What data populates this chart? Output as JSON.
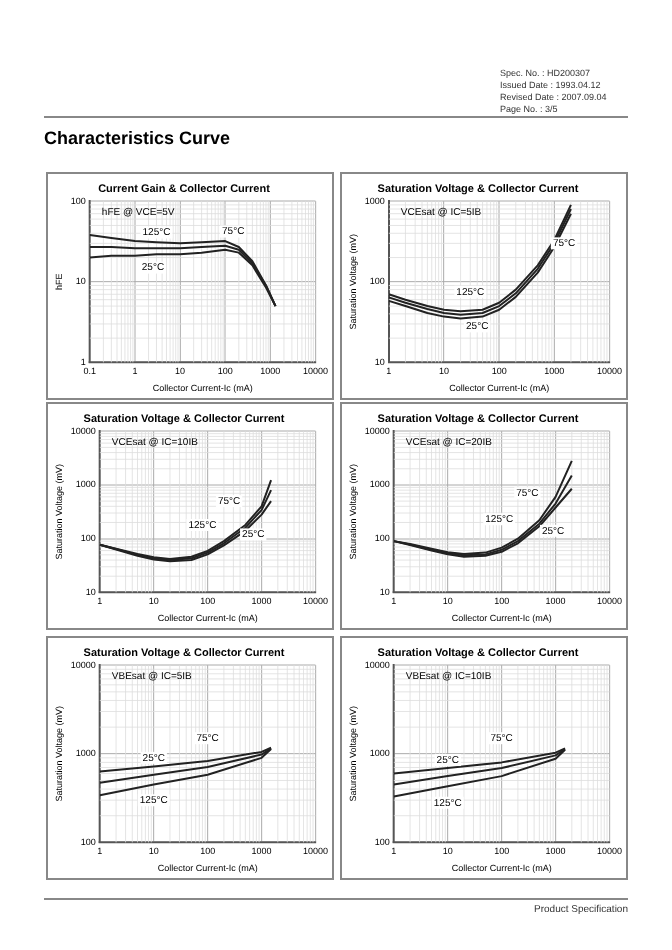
{
  "chart_data": [
    {
      "type": "line",
      "title": "Current Gain & Collector Current",
      "xlabel": "Collector Current-Ic (mA)",
      "ylabel": "hFE",
      "log": "xy",
      "grid": true,
      "xlim": [
        0.1,
        10000
      ],
      "xticks": [
        0.1,
        1,
        10,
        100,
        1000,
        10000
      ],
      "ylim": [
        1,
        100
      ],
      "yticks": [
        1,
        10,
        100
      ],
      "annotations": [
        "hFE @ VCE=5V",
        "Characteristics Curve",
        "Spec. No. : HD200307",
        "Issued Date : 1993.04.12",
        "Revised Date : 2007.09.04",
        "Page No. : 3/5",
        {
          "text": "125°C",
          "x": 3,
          "y": 41
        },
        {
          "text": "75°C",
          "x": 150,
          "y": 42
        },
        {
          "text": "25°C",
          "x": 2.5,
          "y": 15
        }
      ],
      "series": [
        {
          "color": "#222222",
          "x": [
            0.1,
            0.3,
            1,
            3,
            10,
            30,
            100,
            200,
            400,
            800,
            1300
          ],
          "values": [
            38,
            35,
            32,
            31,
            30,
            31,
            32,
            27,
            18,
            9,
            5
          ]
        },
        {
          "color": "#222222",
          "x": [
            0.1,
            0.3,
            1,
            3,
            10,
            30,
            100,
            200,
            400,
            800,
            1300
          ],
          "values": [
            27,
            27,
            26,
            26,
            26,
            27,
            28,
            25,
            17,
            9,
            5
          ]
        },
        {
          "color": "#222222",
          "x": [
            0.1,
            0.3,
            1,
            3,
            10,
            30,
            100,
            200,
            400,
            800,
            1300
          ],
          "values": [
            20,
            21,
            21,
            22,
            22,
            23,
            25,
            23,
            16,
            8.5,
            5
          ]
        }
      ]
    },
    {
      "type": "line",
      "title": "Saturation Voltage & Collector Current",
      "xlabel": "Collector Current-Ic (mA)",
      "ylabel": "Saturation Voltage (mV)",
      "log": "xy",
      "grid": true,
      "xlim": [
        1,
        10000
      ],
      "xticks": [
        1,
        10,
        100,
        1000,
        10000
      ],
      "ylim": [
        10,
        1000
      ],
      "yticks": [
        10,
        100,
        1000
      ],
      "annotations": [
        "VCEsat @ IC=5IB",
        {
          "text": "125°C",
          "x": 30,
          "y": 75
        },
        {
          "text": "25°C",
          "x": 40,
          "y": 28
        },
        {
          "text": "75°C",
          "x": 1500,
          "y": 300
        }
      ],
      "series": [
        {
          "color": "#222222",
          "x": [
            1,
            2,
            5,
            10,
            20,
            50,
            100,
            200,
            500,
            1000,
            2000
          ],
          "values": [
            70,
            60,
            50,
            45,
            43,
            45,
            55,
            80,
            160,
            330,
            900
          ]
        },
        {
          "color": "#222222",
          "x": [
            1,
            2,
            5,
            10,
            20,
            50,
            100,
            200,
            500,
            1000,
            2000
          ],
          "values": [
            64,
            55,
            46,
            41,
            39,
            41,
            50,
            72,
            145,
            300,
            800
          ]
        },
        {
          "color": "#222222",
          "x": [
            1,
            2,
            5,
            10,
            20,
            50,
            100,
            200,
            500,
            1000,
            2000
          ],
          "values": [
            58,
            50,
            41,
            37,
            35,
            37,
            45,
            65,
            130,
            270,
            700
          ]
        }
      ]
    },
    {
      "type": "line",
      "title": "Saturation Voltage & Collector Current",
      "xlabel": "Collector Current-Ic (mA)",
      "ylabel": "Saturation Voltage (mV)",
      "log": "xy",
      "grid": true,
      "xlim": [
        1,
        10000
      ],
      "xticks": [
        1,
        10,
        100,
        1000,
        10000
      ],
      "ylim": [
        10,
        10000
      ],
      "yticks": [
        10,
        100,
        1000,
        10000
      ],
      "annotations": [
        "VCEsat @ IC=10IB",
        {
          "text": "75°C",
          "x": 250,
          "y": 500
        },
        {
          "text": "125°C",
          "x": 80,
          "y": 180
        },
        {
          "text": "25°C",
          "x": 700,
          "y": 120
        }
      ],
      "series": [
        {
          "color": "#222222",
          "x": [
            1,
            2,
            5,
            10,
            20,
            50,
            100,
            200,
            500,
            1000,
            1500
          ],
          "values": [
            77,
            65,
            52,
            45,
            42,
            46,
            59,
            90,
            180,
            400,
            1230
          ]
        },
        {
          "color": "#222222",
          "x": [
            1,
            2,
            5,
            10,
            20,
            50,
            100,
            200,
            500,
            1000,
            1500
          ],
          "values": [
            77,
            64,
            50,
            43,
            40,
            43,
            55,
            82,
            160,
            340,
            800
          ]
        },
        {
          "color": "#222222",
          "x": [
            1,
            2,
            5,
            10,
            20,
            50,
            100,
            200,
            500,
            1000,
            1500
          ],
          "values": [
            77,
            63,
            48,
            41,
            38,
            40,
            51,
            75,
            140,
            280,
            500
          ]
        }
      ]
    },
    {
      "type": "line",
      "title": "Saturation Voltage & Collector Current",
      "xlabel": "Collector Current-Ic (mA)",
      "ylabel": "Saturation Voltage (mV)",
      "log": "xy",
      "grid": true,
      "xlim": [
        1,
        10000
      ],
      "xticks": [
        1,
        10,
        100,
        1000,
        10000
      ],
      "ylim": [
        10,
        10000
      ],
      "yticks": [
        10,
        100,
        1000,
        10000
      ],
      "annotations": [
        "VCEsat @ IC=20IB",
        {
          "text": "75°C",
          "x": 300,
          "y": 700
        },
        {
          "text": "125°C",
          "x": 90,
          "y": 230
        },
        {
          "text": "25°C",
          "x": 900,
          "y": 140
        }
      ],
      "series": [
        {
          "color": "#222222",
          "x": [
            1,
            2,
            5,
            10,
            20,
            50,
            100,
            200,
            500,
            1000,
            2000
          ],
          "values": [
            90,
            80,
            65,
            56,
            52,
            55,
            68,
            100,
            220,
            600,
            2800
          ]
        },
        {
          "color": "#222222",
          "x": [
            1,
            2,
            5,
            10,
            20,
            50,
            100,
            200,
            500,
            1000,
            2000
          ],
          "values": [
            90,
            78,
            62,
            53,
            49,
            51,
            62,
            90,
            190,
            450,
            1500
          ]
        },
        {
          "color": "#222222",
          "x": [
            1,
            2,
            5,
            10,
            20,
            50,
            100,
            200,
            500,
            1000,
            2000
          ],
          "values": [
            90,
            76,
            60,
            51,
            46,
            48,
            57,
            82,
            170,
            380,
            850
          ]
        }
      ]
    },
    {
      "type": "line",
      "title": "Saturation Voltage & Collector Current",
      "xlabel": "Collector Current-Ic (mA)",
      "ylabel": "Saturation Voltage (mV)",
      "log": "xy",
      "grid": true,
      "xlim": [
        1,
        10000
      ],
      "xticks": [
        1,
        10,
        100,
        1000,
        10000
      ],
      "ylim": [
        100,
        10000
      ],
      "yticks": [
        100,
        1000,
        10000
      ],
      "annotations": [
        "VBEsat @ IC=5IB",
        {
          "text": "25°C",
          "x": 10,
          "y": 900
        },
        {
          "text": "75°C",
          "x": 100,
          "y": 1500
        },
        {
          "text": "125°C",
          "x": 10,
          "y": 300
        }
      ],
      "series": [
        {
          "color": "#222222",
          "x": [
            1,
            10,
            100,
            1000,
            1500
          ],
          "values": [
            630,
            720,
            830,
            1050,
            1170
          ]
        },
        {
          "color": "#222222",
          "x": [
            1,
            10,
            100,
            1000,
            1500
          ],
          "values": [
            470,
            580,
            710,
            980,
            1150
          ]
        },
        {
          "color": "#222222",
          "x": [
            1,
            10,
            100,
            1000,
            1500
          ],
          "values": [
            340,
            450,
            580,
            900,
            1130
          ]
        }
      ]
    },
    {
      "type": "line",
      "title": "Saturation Voltage & Collector Current",
      "xlabel": "Collector Current-Ic (mA)",
      "ylabel": "Saturation Voltage (mV)",
      "log": "xy",
      "grid": true,
      "xlim": [
        1,
        10000
      ],
      "xticks": [
        1,
        10,
        100,
        1000,
        10000
      ],
      "ylim": [
        100,
        10000
      ],
      "yticks": [
        100,
        1000,
        10000
      ],
      "annotations": [
        "VBEsat @ IC=10IB",
        "Product Specification",
        {
          "text": "25°C",
          "x": 10,
          "y": 850
        },
        {
          "text": "75°C",
          "x": 100,
          "y": 1500
        },
        {
          "text": "125°C",
          "x": 10,
          "y": 280
        }
      ],
      "series": [
        {
          "color": "#222222",
          "x": [
            1,
            10,
            100,
            1000,
            1500
          ],
          "values": [
            600,
            690,
            800,
            1030,
            1150
          ]
        },
        {
          "color": "#222222",
          "x": [
            1,
            10,
            100,
            1000,
            1500
          ],
          "values": [
            450,
            560,
            690,
            960,
            1130
          ]
        },
        {
          "color": "#222222",
          "x": [
            1,
            10,
            100,
            1000,
            1500
          ],
          "values": [
            330,
            430,
            560,
            880,
            1110
          ]
        }
      ]
    }
  ]
}
